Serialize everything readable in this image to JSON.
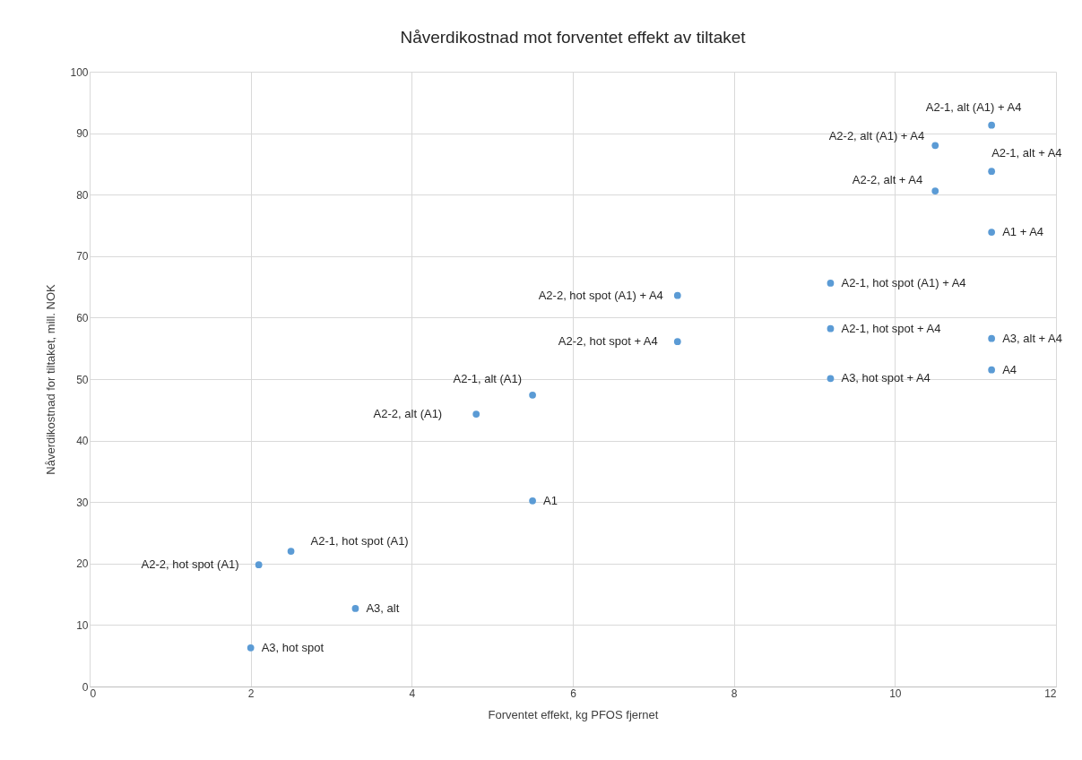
{
  "chart_data": {
    "type": "scatter",
    "title": "Nåverdikostnad mot forventet effekt av tiltaket",
    "xlabel": "Forventet effekt,  kg PFOS fjernet",
    "ylabel": "Nåverdikostnad for tiltaket, mill. NOK",
    "x": [
      2.0,
      3.3,
      2.1,
      2.5,
      5.5,
      4.8,
      5.5,
      7.3,
      7.3,
      9.2,
      9.2,
      9.2,
      11.2,
      11.2,
      11.2,
      11.2,
      10.5,
      10.5,
      11.2
    ],
    "series": [
      {
        "color": "#5b9bd5",
        "values": [
          6.3,
          12.7,
          19.8,
          22.0,
          30.2,
          44.3,
          47.4,
          56.1,
          63.6,
          50.1,
          58.2,
          65.6,
          51.5,
          56.6,
          73.9,
          83.8,
          80.6,
          88.0,
          91.3
        ]
      }
    ],
    "annotations": [
      {
        "text": "A3, hot spot",
        "x": 2.0,
        "y": 6.3
      },
      {
        "text": "A3, alt",
        "x": 3.3,
        "y": 12.7
      },
      {
        "text": "A2-2, hot spot (A1)",
        "x": 2.1,
        "y": 19.8
      },
      {
        "text": "A2-1, hot spot (A1)",
        "x": 2.5,
        "y": 22.0
      },
      {
        "text": "A1",
        "x": 5.5,
        "y": 30.2
      },
      {
        "text": "A2-2, alt (A1)",
        "x": 4.8,
        "y": 44.3
      },
      {
        "text": "A2-1, alt (A1)",
        "x": 5.5,
        "y": 47.4
      },
      {
        "text": "A2-2, hot spot + A4",
        "x": 7.3,
        "y": 56.1
      },
      {
        "text": "A2-2, hot spot (A1) + A4",
        "x": 7.3,
        "y": 63.6
      },
      {
        "text": "A3, hot spot + A4",
        "x": 9.2,
        "y": 50.1
      },
      {
        "text": "A2-1, hot spot + A4",
        "x": 9.2,
        "y": 58.2
      },
      {
        "text": "A2-1, hot spot (A1) + A4",
        "x": 9.2,
        "y": 65.6
      },
      {
        "text": "A4",
        "x": 11.2,
        "y": 51.5
      },
      {
        "text": "A3, alt + A4",
        "x": 11.2,
        "y": 56.6
      },
      {
        "text": "A1 + A4",
        "x": 11.2,
        "y": 73.9
      },
      {
        "text": "A2-1, alt + A4",
        "x": 11.2,
        "y": 83.8
      },
      {
        "text": "A2-2, alt + A4",
        "x": 10.5,
        "y": 80.6
      },
      {
        "text": "A2-2, alt (A1) + A4",
        "x": 10.5,
        "y": 88.0
      },
      {
        "text": "A2-1, alt (A1) + A4",
        "x": 11.2,
        "y": 91.3
      }
    ],
    "xlim": [
      0,
      12
    ],
    "xticks": [
      0,
      2,
      4,
      6,
      8,
      10,
      12
    ],
    "ylim": [
      0,
      100
    ],
    "yticks": [
      0,
      10,
      20,
      30,
      40,
      50,
      60,
      70,
      80,
      90,
      100
    ],
    "grid": true,
    "marker": "circle"
  }
}
